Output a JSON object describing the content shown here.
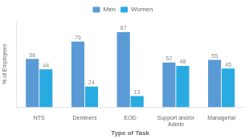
{
  "chart_data": {
    "type": "bar",
    "categories": [
      "NTS",
      "Deminers",
      "EOD",
      "Support and/or Admin",
      "Managerial"
    ],
    "series": [
      {
        "name": "Men",
        "color": "#5b9bd5",
        "values": [
          56,
          76,
          87,
          52,
          55
        ]
      },
      {
        "name": "Women",
        "color": "#29abe2",
        "values": [
          44,
          24,
          13,
          48,
          45
        ]
      }
    ],
    "xlabel": "Type of Task",
    "ylabel": "% of Employees",
    "ylim": [
      0,
      100
    ],
    "grid": false,
    "legend": "top",
    "data_labels": true,
    "tick_labels": "x"
  }
}
